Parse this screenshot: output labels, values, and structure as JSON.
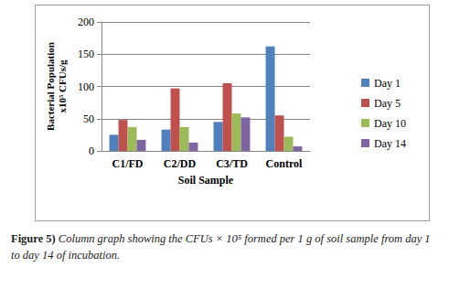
{
  "chart_data": {
    "type": "bar",
    "x_label": "Soil Sample",
    "y_label": "Bacterial Population\nx10⁵ CFUs/g",
    "categories": [
      "C1/FD",
      "C2/DD",
      "C3/TD",
      "Control"
    ],
    "series": [
      {
        "name": "Day 1",
        "color": "#4f81bd",
        "values": [
          25,
          33,
          45,
          162
        ]
      },
      {
        "name": "Day 5",
        "color": "#c0504d",
        "values": [
          48,
          97,
          105,
          55
        ]
      },
      {
        "name": "Day 10",
        "color": "#9bbb59",
        "values": [
          37,
          37,
          58,
          22
        ]
      },
      {
        "name": "Day 14",
        "color": "#8064a2",
        "values": [
          17,
          13,
          52,
          7
        ]
      }
    ],
    "ylim": [
      0,
      200
    ],
    "yticks": [
      0,
      50,
      100,
      150,
      200
    ],
    "grid": true,
    "legend": "right",
    "caption": {
      "label": "Figure 5)",
      "text": "Column graph showing the CFUs × 10⁵ formed per 1 g of soil sample from day 1 to day 14 of incubation."
    }
  }
}
